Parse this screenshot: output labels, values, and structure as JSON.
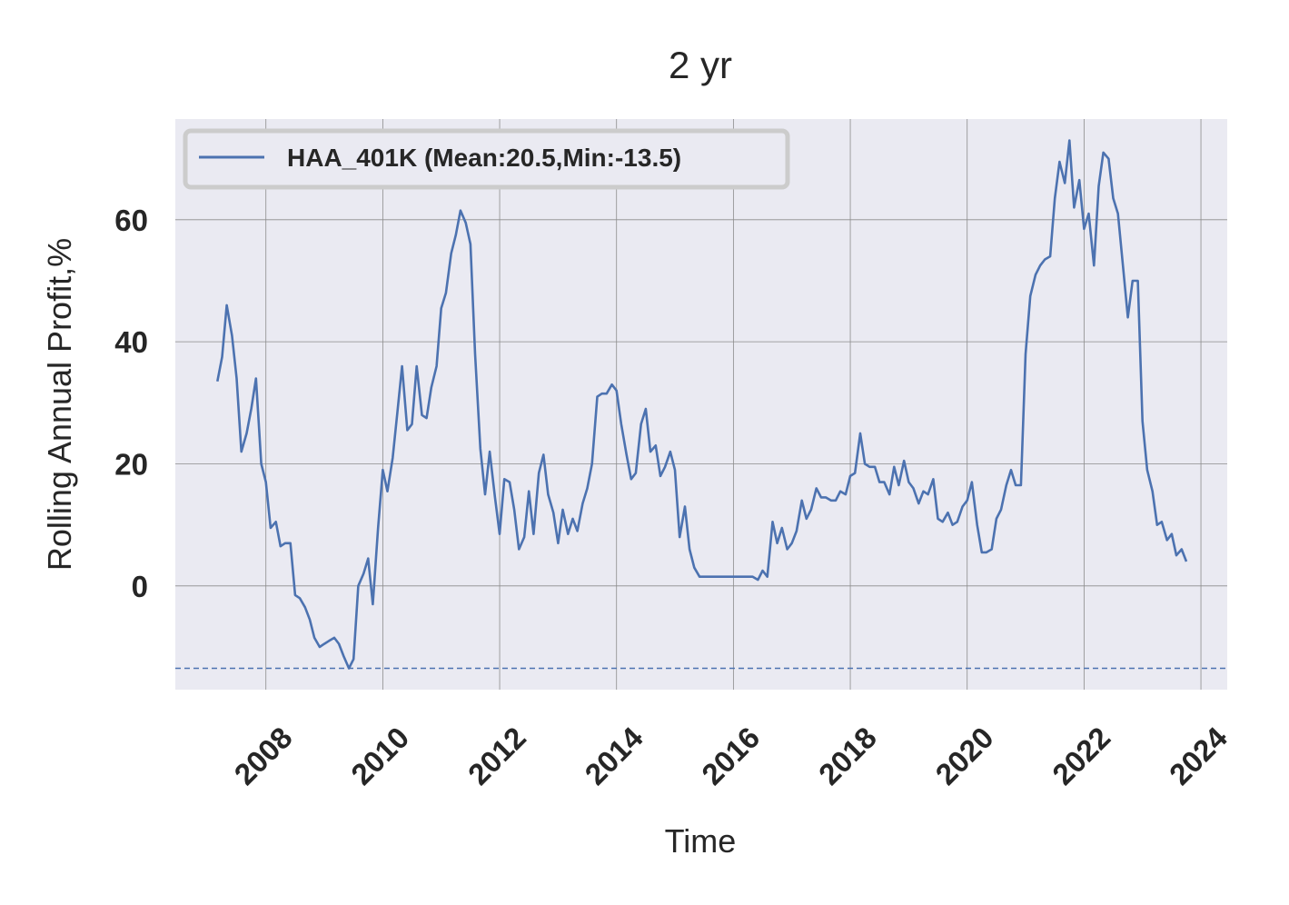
{
  "chart_data": {
    "type": "line",
    "title": "2 yr",
    "xlabel": "Time",
    "ylabel": "Rolling Annual Profit,%",
    "xlim": [
      2006.45,
      2024.45
    ],
    "ylim": [
      -17.0,
      76.5
    ],
    "x_ticks": [
      2008,
      2010,
      2012,
      2014,
      2016,
      2018,
      2020,
      2022,
      2024
    ],
    "x_tick_labels": [
      "2008",
      "2010",
      "2012",
      "2014",
      "2016",
      "2018",
      "2020",
      "2022",
      "2024"
    ],
    "y_ticks": [
      0,
      20,
      40,
      60
    ],
    "y_tick_labels": [
      "0",
      "20",
      "40",
      "60"
    ],
    "grid": true,
    "legend_position": "top-left",
    "colors": {
      "line": "#4c72b0",
      "plot_bg": "#eaeaf2",
      "grid": "#8c8c8c",
      "text": "#262626"
    },
    "series": [
      {
        "name": "HAA_401K (Mean:20.5,Min:-13.5)",
        "style": "solid",
        "points": [
          [
            2007.17,
            33.5
          ],
          [
            2007.25,
            37.5
          ],
          [
            2007.33,
            46.0
          ],
          [
            2007.42,
            41.0
          ],
          [
            2007.5,
            34.0
          ],
          [
            2007.58,
            22.0
          ],
          [
            2007.67,
            25.0
          ],
          [
            2007.75,
            29.0
          ],
          [
            2007.83,
            34.0
          ],
          [
            2007.92,
            20.0
          ],
          [
            2008.0,
            17.0
          ],
          [
            2008.08,
            9.5
          ],
          [
            2008.17,
            10.5
          ],
          [
            2008.25,
            6.5
          ],
          [
            2008.33,
            7.0
          ],
          [
            2008.42,
            7.0
          ],
          [
            2008.5,
            -1.5
          ],
          [
            2008.58,
            -2.0
          ],
          [
            2008.67,
            -3.5
          ],
          [
            2008.75,
            -5.5
          ],
          [
            2008.83,
            -8.5
          ],
          [
            2008.92,
            -10.0
          ],
          [
            2009.0,
            -9.5
          ],
          [
            2009.08,
            -9.0
          ],
          [
            2009.17,
            -8.5
          ],
          [
            2009.25,
            -9.5
          ],
          [
            2009.33,
            -11.5
          ],
          [
            2009.42,
            -13.5
          ],
          [
            2009.5,
            -12.0
          ],
          [
            2009.58,
            0.0
          ],
          [
            2009.67,
            2.0
          ],
          [
            2009.75,
            4.5
          ],
          [
            2009.83,
            -3.0
          ],
          [
            2009.92,
            9.5
          ],
          [
            2010.0,
            19.0
          ],
          [
            2010.08,
            15.5
          ],
          [
            2010.17,
            21.0
          ],
          [
            2010.25,
            28.5
          ],
          [
            2010.33,
            36.0
          ],
          [
            2010.42,
            25.5
          ],
          [
            2010.5,
            26.5
          ],
          [
            2010.58,
            36.0
          ],
          [
            2010.67,
            28.0
          ],
          [
            2010.75,
            27.5
          ],
          [
            2010.83,
            32.5
          ],
          [
            2010.92,
            36.0
          ],
          [
            2011.0,
            45.5
          ],
          [
            2011.08,
            48.0
          ],
          [
            2011.17,
            54.5
          ],
          [
            2011.25,
            57.5
          ],
          [
            2011.33,
            61.5
          ],
          [
            2011.42,
            59.5
          ],
          [
            2011.5,
            56.0
          ],
          [
            2011.58,
            38.0
          ],
          [
            2011.67,
            22.5
          ],
          [
            2011.75,
            15.0
          ],
          [
            2011.83,
            22.0
          ],
          [
            2011.92,
            14.5
          ],
          [
            2012.0,
            8.5
          ],
          [
            2012.08,
            17.5
          ],
          [
            2012.17,
            17.0
          ],
          [
            2012.25,
            12.5
          ],
          [
            2012.33,
            6.0
          ],
          [
            2012.42,
            8.0
          ],
          [
            2012.5,
            15.5
          ],
          [
            2012.58,
            8.5
          ],
          [
            2012.67,
            18.5
          ],
          [
            2012.75,
            21.5
          ],
          [
            2012.83,
            15.0
          ],
          [
            2012.92,
            12.0
          ],
          [
            2013.0,
            7.0
          ],
          [
            2013.08,
            12.5
          ],
          [
            2013.17,
            8.5
          ],
          [
            2013.25,
            11.0
          ],
          [
            2013.33,
            9.0
          ],
          [
            2013.42,
            13.5
          ],
          [
            2013.5,
            16.0
          ],
          [
            2013.58,
            20.0
          ],
          [
            2013.67,
            31.0
          ],
          [
            2013.75,
            31.5
          ],
          [
            2013.83,
            31.5
          ],
          [
            2013.92,
            33.0
          ],
          [
            2014.0,
            32.0
          ],
          [
            2014.08,
            26.5
          ],
          [
            2014.17,
            21.5
          ],
          [
            2014.25,
            17.5
          ],
          [
            2014.33,
            18.5
          ],
          [
            2014.42,
            26.5
          ],
          [
            2014.5,
            29.0
          ],
          [
            2014.58,
            22.0
          ],
          [
            2014.67,
            23.0
          ],
          [
            2014.75,
            18.0
          ],
          [
            2014.83,
            19.5
          ],
          [
            2014.92,
            22.0
          ],
          [
            2015.0,
            19.0
          ],
          [
            2015.08,
            8.0
          ],
          [
            2015.17,
            13.0
          ],
          [
            2015.25,
            6.0
          ],
          [
            2015.33,
            3.0
          ],
          [
            2015.42,
            1.5
          ],
          [
            2015.5,
            1.5
          ],
          [
            2015.58,
            1.5
          ],
          [
            2015.67,
            1.5
          ],
          [
            2015.75,
            1.5
          ],
          [
            2015.83,
            1.5
          ],
          [
            2015.92,
            1.5
          ],
          [
            2016.0,
            1.5
          ],
          [
            2016.08,
            1.5
          ],
          [
            2016.17,
            1.5
          ],
          [
            2016.25,
            1.5
          ],
          [
            2016.33,
            1.5
          ],
          [
            2016.42,
            1.0
          ],
          [
            2016.5,
            2.5
          ],
          [
            2016.58,
            1.5
          ],
          [
            2016.67,
            10.5
          ],
          [
            2016.75,
            7.0
          ],
          [
            2016.83,
            9.5
          ],
          [
            2016.92,
            6.0
          ],
          [
            2017.0,
            7.0
          ],
          [
            2017.08,
            9.0
          ],
          [
            2017.17,
            14.0
          ],
          [
            2017.25,
            11.0
          ],
          [
            2017.33,
            12.5
          ],
          [
            2017.42,
            16.0
          ],
          [
            2017.5,
            14.5
          ],
          [
            2017.58,
            14.5
          ],
          [
            2017.67,
            14.0
          ],
          [
            2017.75,
            14.0
          ],
          [
            2017.83,
            15.5
          ],
          [
            2017.92,
            15.0
          ],
          [
            2018.0,
            18.0
          ],
          [
            2018.08,
            18.5
          ],
          [
            2018.17,
            25.0
          ],
          [
            2018.25,
            20.0
          ],
          [
            2018.33,
            19.5
          ],
          [
            2018.42,
            19.5
          ],
          [
            2018.5,
            17.0
          ],
          [
            2018.58,
            17.0
          ],
          [
            2018.67,
            15.0
          ],
          [
            2018.75,
            19.5
          ],
          [
            2018.83,
            16.5
          ],
          [
            2018.92,
            20.5
          ],
          [
            2019.0,
            17.0
          ],
          [
            2019.08,
            16.0
          ],
          [
            2019.17,
            13.5
          ],
          [
            2019.25,
            15.5
          ],
          [
            2019.33,
            15.0
          ],
          [
            2019.42,
            17.5
          ],
          [
            2019.5,
            11.0
          ],
          [
            2019.58,
            10.5
          ],
          [
            2019.67,
            12.0
          ],
          [
            2019.75,
            10.0
          ],
          [
            2019.83,
            10.5
          ],
          [
            2019.92,
            13.0
          ],
          [
            2020.0,
            14.0
          ],
          [
            2020.08,
            17.0
          ],
          [
            2020.17,
            10.0
          ],
          [
            2020.25,
            5.5
          ],
          [
            2020.33,
            5.5
          ],
          [
            2020.42,
            6.0
          ],
          [
            2020.5,
            11.0
          ],
          [
            2020.58,
            12.5
          ],
          [
            2020.67,
            16.5
          ],
          [
            2020.75,
            19.0
          ],
          [
            2020.83,
            16.5
          ],
          [
            2020.92,
            16.5
          ],
          [
            2021.0,
            38.0
          ],
          [
            2021.08,
            47.5
          ],
          [
            2021.17,
            51.0
          ],
          [
            2021.25,
            52.5
          ],
          [
            2021.33,
            53.5
          ],
          [
            2021.42,
            54.0
          ],
          [
            2021.5,
            63.5
          ],
          [
            2021.58,
            69.5
          ],
          [
            2021.67,
            66.0
          ],
          [
            2021.75,
            73.0
          ],
          [
            2021.83,
            62.0
          ],
          [
            2021.92,
            66.5
          ],
          [
            2022.0,
            58.5
          ],
          [
            2022.08,
            61.0
          ],
          [
            2022.17,
            52.5
          ],
          [
            2022.25,
            65.5
          ],
          [
            2022.33,
            71.0
          ],
          [
            2022.42,
            70.0
          ],
          [
            2022.5,
            63.5
          ],
          [
            2022.58,
            61.0
          ],
          [
            2022.67,
            52.0
          ],
          [
            2022.75,
            44.0
          ],
          [
            2022.83,
            50.0
          ],
          [
            2022.92,
            50.0
          ],
          [
            2023.0,
            27.0
          ],
          [
            2023.08,
            19.0
          ],
          [
            2023.17,
            15.5
          ],
          [
            2023.25,
            10.0
          ],
          [
            2023.33,
            10.5
          ],
          [
            2023.42,
            7.5
          ],
          [
            2023.5,
            8.5
          ],
          [
            2023.58,
            5.0
          ],
          [
            2023.67,
            6.0
          ],
          [
            2023.75,
            4.0
          ]
        ]
      }
    ],
    "hlines": [
      {
        "y": -13.5,
        "style": "dashed"
      }
    ]
  }
}
